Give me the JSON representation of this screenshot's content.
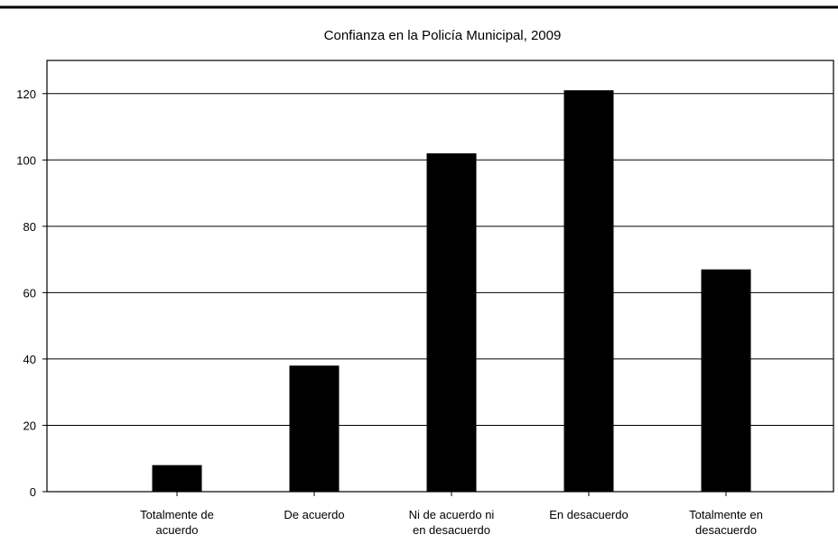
{
  "chart_data": {
    "type": "bar",
    "title": "Confianza en la Policía Municipal, 2009",
    "xlabel": "",
    "ylabel": "",
    "categories": [
      "Totalmente de acuerdo",
      "De acuerdo",
      "Ni de acuerdo ni en desacuerdo",
      "En desacuerdo",
      "Totalmente en desacuerdo"
    ],
    "category_label_lines": [
      [
        "Totalmente de",
        "acuerdo"
      ],
      [
        "De acuerdo"
      ],
      [
        "Ni de acuerdo ni",
        "en desacuerdo"
      ],
      [
        "En desacuerdo"
      ],
      [
        "Totalmente en",
        "desacuerdo"
      ]
    ],
    "values": [
      8,
      38,
      102,
      121,
      67
    ],
    "ylim": [
      0,
      130
    ],
    "yticks": [
      0,
      20,
      40,
      60,
      80,
      100,
      120
    ],
    "grid": true,
    "legend": "none",
    "bar_color": "#000000",
    "grid_color": "#000000"
  }
}
